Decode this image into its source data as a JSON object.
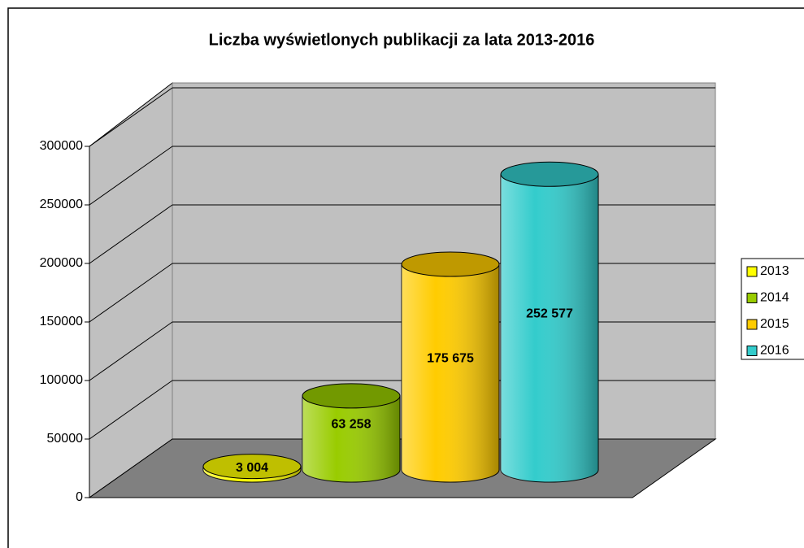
{
  "chart_data": {
    "type": "cylinder3d",
    "title": "Liczba wyświetlonych publikacji za lata 2013-2016",
    "series": [
      {
        "name": "2013",
        "color": "#ffff00",
        "values": [
          3004
        ],
        "value_labels": [
          "3 004"
        ]
      },
      {
        "name": "2014",
        "color": "#99cc00",
        "values": [
          63258
        ],
        "value_labels": [
          "63 258"
        ]
      },
      {
        "name": "2015",
        "color": "#ffcc00",
        "values": [
          175675
        ],
        "value_labels": [
          "175 675"
        ]
      },
      {
        "name": "2016",
        "color": "#33cccc",
        "values": [
          252577
        ],
        "value_labels": [
          "252 577"
        ]
      }
    ],
    "ylim": [
      0,
      300000
    ],
    "yticks": [
      0,
      50000,
      100000,
      150000,
      200000,
      250000,
      300000
    ],
    "grid": true,
    "legend": "right"
  }
}
